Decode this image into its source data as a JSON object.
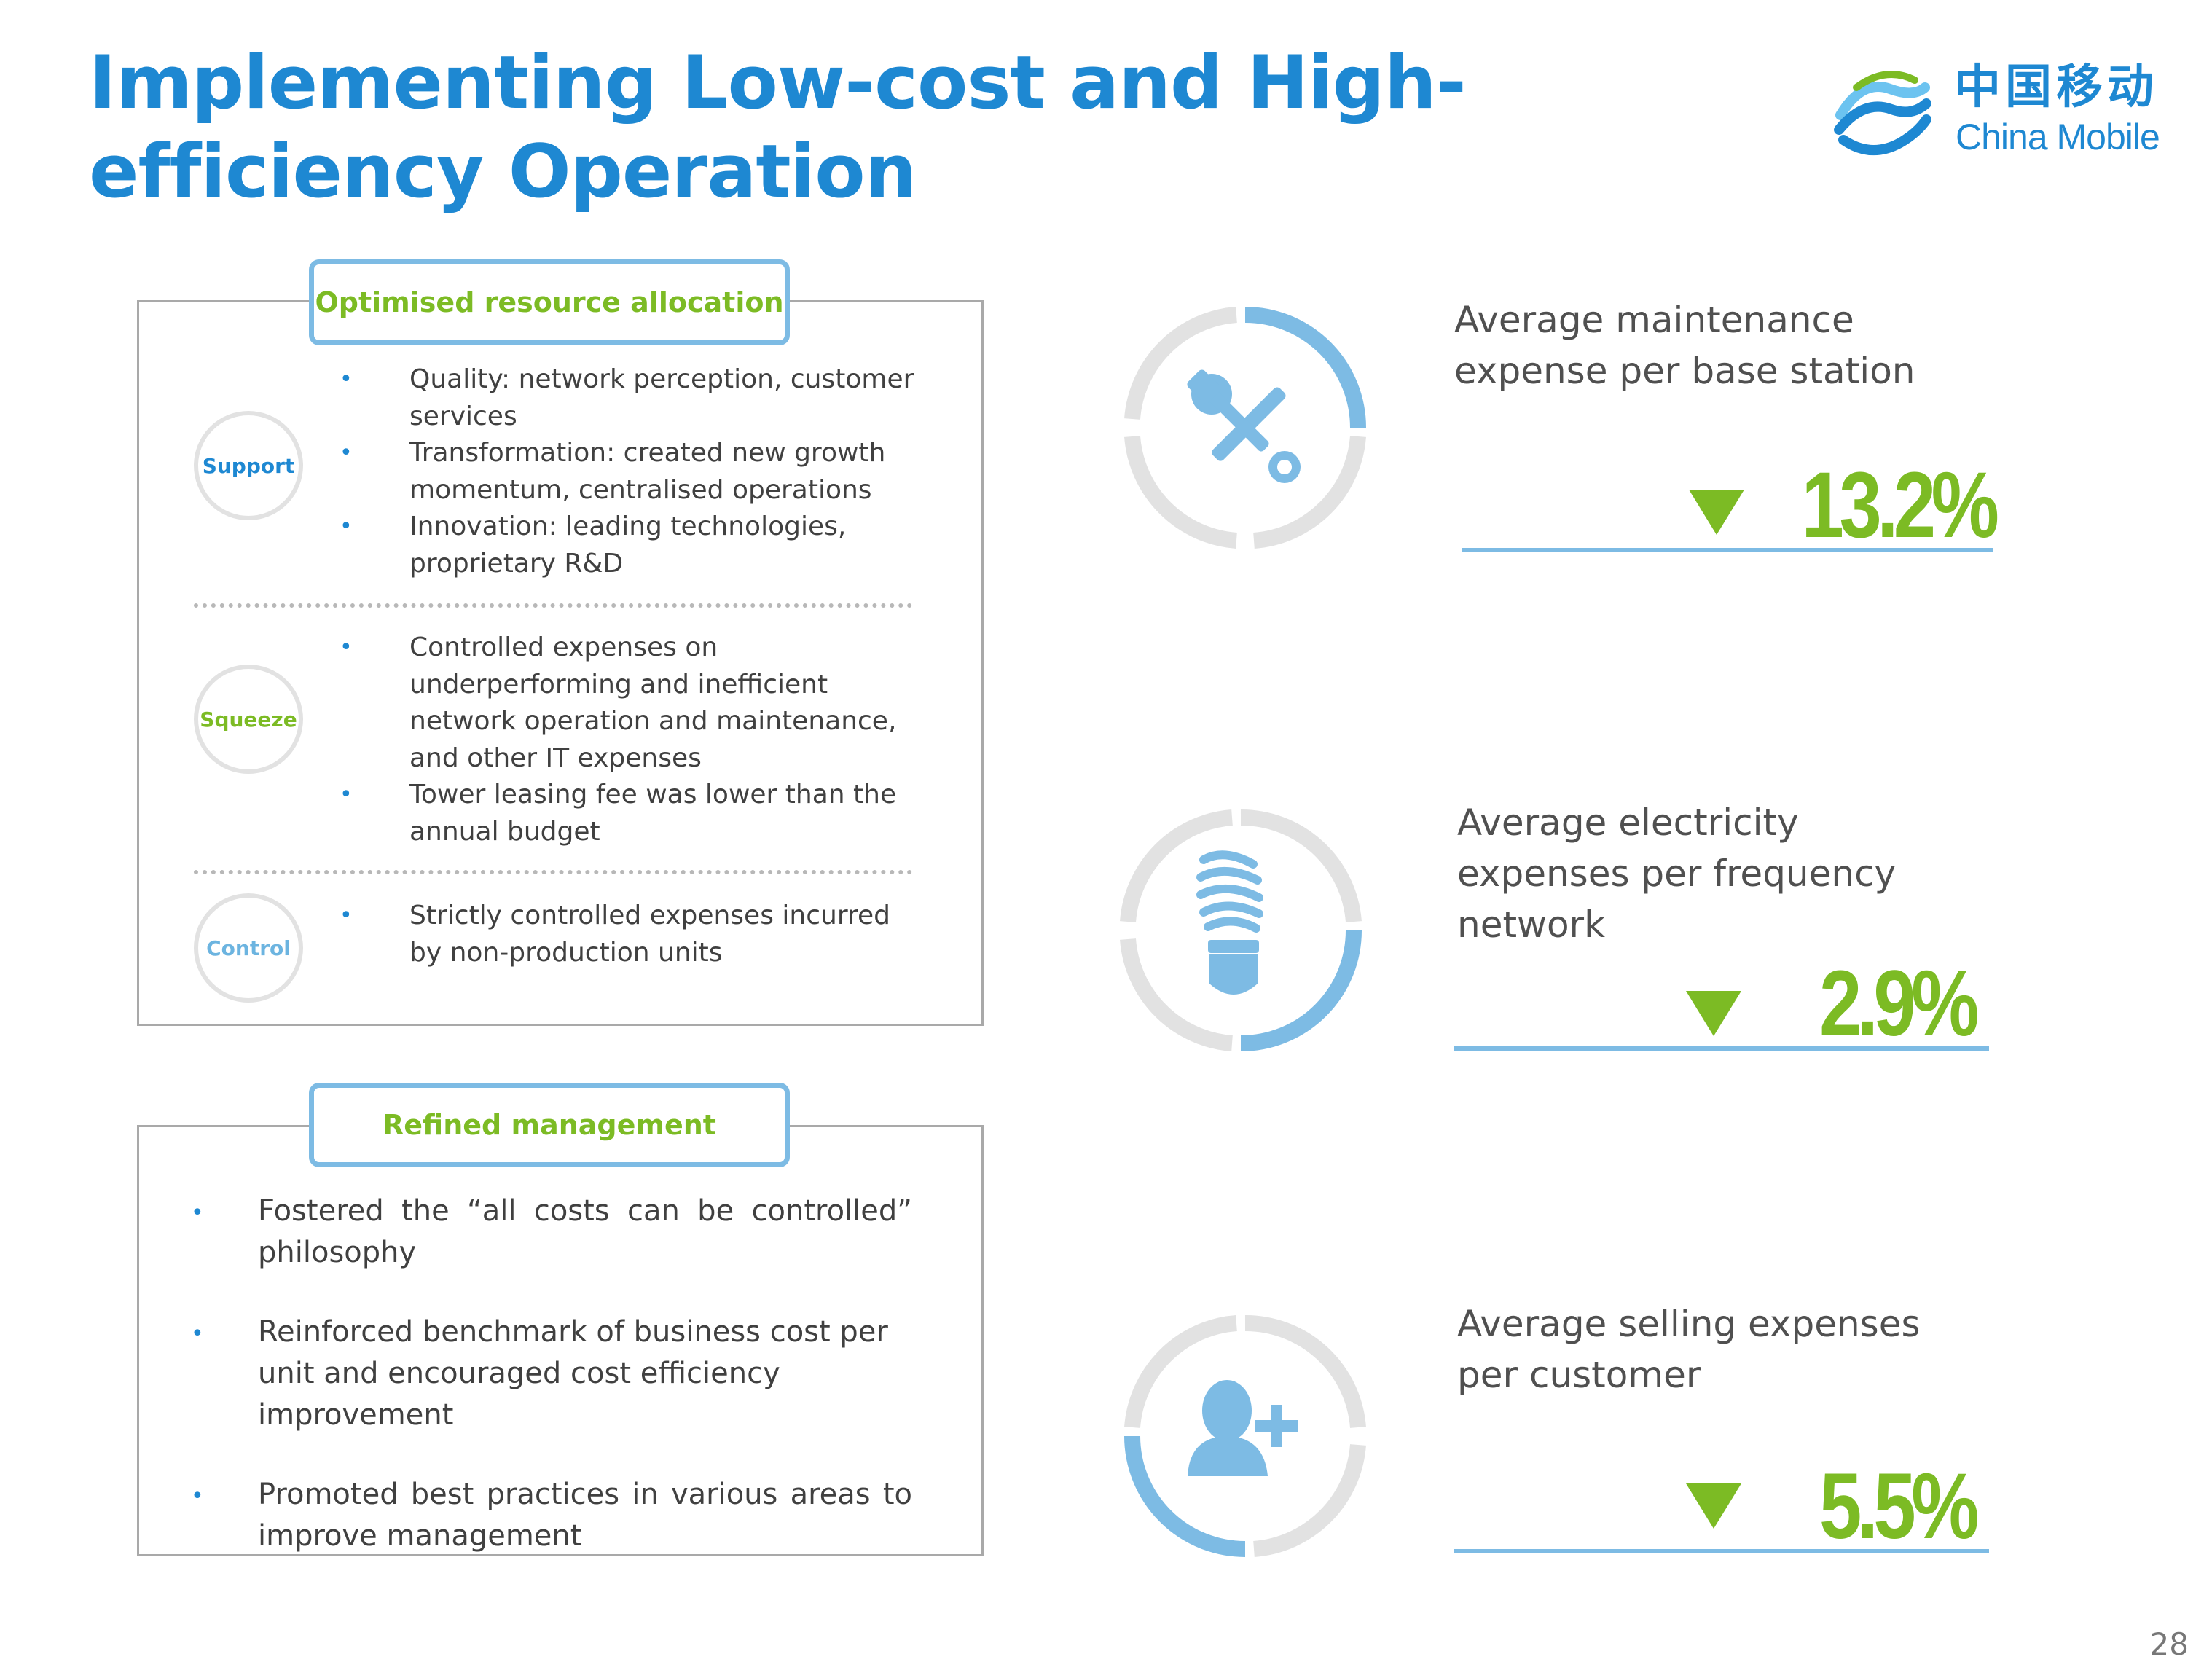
{
  "page": {
    "title": "Implementing Low-cost and High-efficiency Operation",
    "page_number": "28"
  },
  "logo": {
    "cn": "中国移动",
    "en": "China Mobile",
    "colors": {
      "primary": "#1e88d2",
      "secondary": "#6cc3f0"
    }
  },
  "resource_allocation": {
    "heading": "Optimised resource allocation",
    "sections": [
      {
        "label": "Support",
        "label_color": "#1e88d2",
        "bullets": [
          "Quality: network perception, customer services",
          "Transformation: created new growth momentum, centralised operations",
          "Innovation: leading technologies, proprietary R&D"
        ]
      },
      {
        "label": "Squeeze",
        "label_color": "#7cbb24",
        "bullets": [
          "Controlled  expenses on underperforming and inefficient network operation and maintenance, and other IT expenses",
          "Tower leasing fee was lower than the annual budget"
        ]
      },
      {
        "label": "Control",
        "label_color": "#6cb4e0",
        "bullets": [
          "Strictly controlled expenses incurred by non-production units"
        ]
      }
    ]
  },
  "refined_management": {
    "heading": "Refined management",
    "bullets": [
      "Fostered the “all costs can be controlled” philosophy",
      "Reinforced benchmark of business cost per unit and encouraged cost efficiency improvement",
      "Promoted best practices in various areas to improve management"
    ]
  },
  "metrics": [
    {
      "label": "Average maintenance expense per base station",
      "value": "13.2%",
      "direction": "down",
      "icon": "tools-icon",
      "ring_fill": 0.25
    },
    {
      "label": "Average electricity expenses per frequency network",
      "value": "2.9%",
      "direction": "down",
      "icon": "light-bulb-icon",
      "ring_fill": 0.25
    },
    {
      "label": "Average selling expenses per customer",
      "value": "5.5%",
      "direction": "down",
      "icon": "add-user-icon",
      "ring_fill": 0.25
    }
  ],
  "colors": {
    "accent_blue": "#1e88d2",
    "light_blue": "#7dbbe4",
    "green": "#7cbb24",
    "ring_gray": "#e2e2e2"
  }
}
